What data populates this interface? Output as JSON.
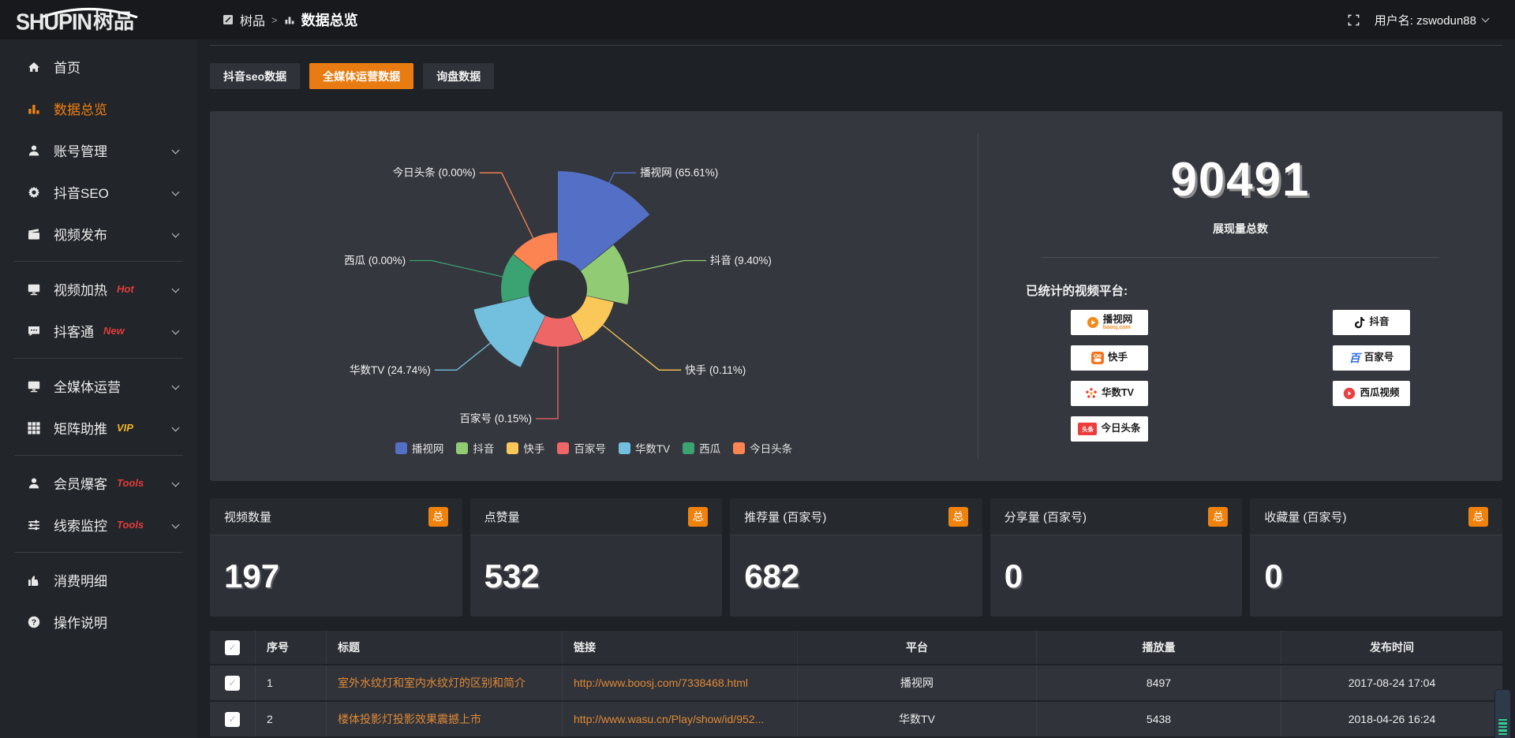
{
  "topbar": {
    "logo_en": "SHUPIN",
    "logo_cn": "树品",
    "breadcrumb_root": "树品",
    "breadcrumb_sep": ">",
    "breadcrumb_current": "数据总览",
    "username": "用户名: zswodun88"
  },
  "sidebar": {
    "items": [
      {
        "icon": "home",
        "label": "首页",
        "active": false,
        "chevron": false,
        "tag": "",
        "tag_color": "",
        "divider_after": false
      },
      {
        "icon": "chart",
        "label": "数据总览",
        "active": true,
        "chevron": false,
        "tag": "",
        "tag_color": "",
        "divider_after": false
      },
      {
        "icon": "user",
        "label": "账号管理",
        "active": false,
        "chevron": true,
        "tag": "",
        "tag_color": "",
        "divider_after": false
      },
      {
        "icon": "gear",
        "label": "抖音SEO",
        "active": false,
        "chevron": true,
        "tag": "",
        "tag_color": "",
        "divider_after": false
      },
      {
        "icon": "clapper",
        "label": "视频发布",
        "active": false,
        "chevron": true,
        "tag": "",
        "tag_color": "",
        "divider_after": true
      },
      {
        "icon": "display",
        "label": "视频加热",
        "active": false,
        "chevron": true,
        "tag": "Hot",
        "tag_color": "#e23c3c",
        "divider_after": false
      },
      {
        "icon": "chat",
        "label": "抖客通",
        "active": false,
        "chevron": true,
        "tag": "New",
        "tag_color": "#e23c3c",
        "divider_after": true
      },
      {
        "icon": "display",
        "label": "全媒体运营",
        "active": false,
        "chevron": true,
        "tag": "",
        "tag_color": "",
        "divider_after": false
      },
      {
        "icon": "grid",
        "label": "矩阵助推",
        "active": false,
        "chevron": true,
        "tag": "VIP",
        "tag_color": "#f0b429",
        "divider_after": true
      },
      {
        "icon": "user",
        "label": "会员爆客",
        "active": false,
        "chevron": true,
        "tag": "Tools",
        "tag_color": "#e23c3c",
        "divider_after": false
      },
      {
        "icon": "sliders",
        "label": "线索监控",
        "active": false,
        "chevron": true,
        "tag": "Tools",
        "tag_color": "#e23c3c",
        "divider_after": true
      },
      {
        "icon": "thumb",
        "label": "消费明细",
        "active": false,
        "chevron": false,
        "tag": "",
        "tag_color": "",
        "divider_after": false
      },
      {
        "icon": "question",
        "label": "操作说明",
        "active": false,
        "chevron": false,
        "tag": "",
        "tag_color": "",
        "divider_after": false
      }
    ]
  },
  "tabs": [
    {
      "label": "抖音seo数据",
      "active": false
    },
    {
      "label": "全媒体运营数据",
      "active": true
    },
    {
      "label": "询盘数据",
      "active": false
    }
  ],
  "chart_data": {
    "type": "pie",
    "rose": true,
    "label_format": "name (value%)",
    "legend_position": "bottom",
    "items": [
      {
        "name": "播视网",
        "value": 65.61,
        "color": "#5470c6"
      },
      {
        "name": "抖音",
        "value": 9.4,
        "color": "#91cc75"
      },
      {
        "name": "快手",
        "value": 0.11,
        "color": "#fac858"
      },
      {
        "name": "百家号",
        "value": 0.15,
        "color": "#ee6666"
      },
      {
        "name": "华数TV",
        "value": 24.74,
        "color": "#73c0de"
      },
      {
        "name": "西瓜",
        "value": 0.0,
        "color": "#3ba272"
      },
      {
        "name": "今日头条",
        "value": 0.0,
        "color": "#fc8452"
      }
    ]
  },
  "summary": {
    "total_value": "90491",
    "total_label": "展现量总数",
    "platforms_label": "已统计的视频平台:",
    "platform_columns": [
      [
        {
          "id": "boosj",
          "name": "播视网",
          "sub": "boosj.com"
        },
        {
          "id": "kuaishou",
          "name": "快手",
          "sub": ""
        },
        {
          "id": "wasu",
          "name": "华数TV",
          "sub": ""
        },
        {
          "id": "toutiao",
          "name": "今日头条",
          "sub": ""
        }
      ],
      [
        {
          "id": "douyin",
          "name": "抖音",
          "sub": ""
        },
        {
          "id": "baijiahao",
          "name": "百家号",
          "sub": ""
        },
        {
          "id": "xigua",
          "name": "西瓜视频",
          "sub": ""
        }
      ]
    ]
  },
  "stat_cards": [
    {
      "title": "视频数量",
      "badge": "总",
      "value": "197"
    },
    {
      "title": "点赞量",
      "badge": "总",
      "value": "532"
    },
    {
      "title": "推荐量 (百家号)",
      "badge": "总",
      "value": "682"
    },
    {
      "title": "分享量 (百家号)",
      "badge": "总",
      "value": "0"
    },
    {
      "title": "收藏量 (百家号)",
      "badge": "总",
      "value": "0"
    }
  ],
  "table": {
    "headers": [
      "序号",
      "标题",
      "链接",
      "平台",
      "播放量",
      "发布时间"
    ],
    "rows": [
      {
        "index": "1",
        "title": "室外水纹灯和室内水纹灯的区别和简介",
        "link": "http://www.boosj.com/7338468.html",
        "platform": "播视网",
        "views": "8497",
        "time": "2017-08-24 17:04"
      },
      {
        "index": "2",
        "title": "楼体投影灯投影效果震撼上市",
        "link": "http://www.wasu.cn/Play/show/id/952...",
        "platform": "华数TV",
        "views": "5438",
        "time": "2018-04-26 16:24"
      }
    ]
  }
}
